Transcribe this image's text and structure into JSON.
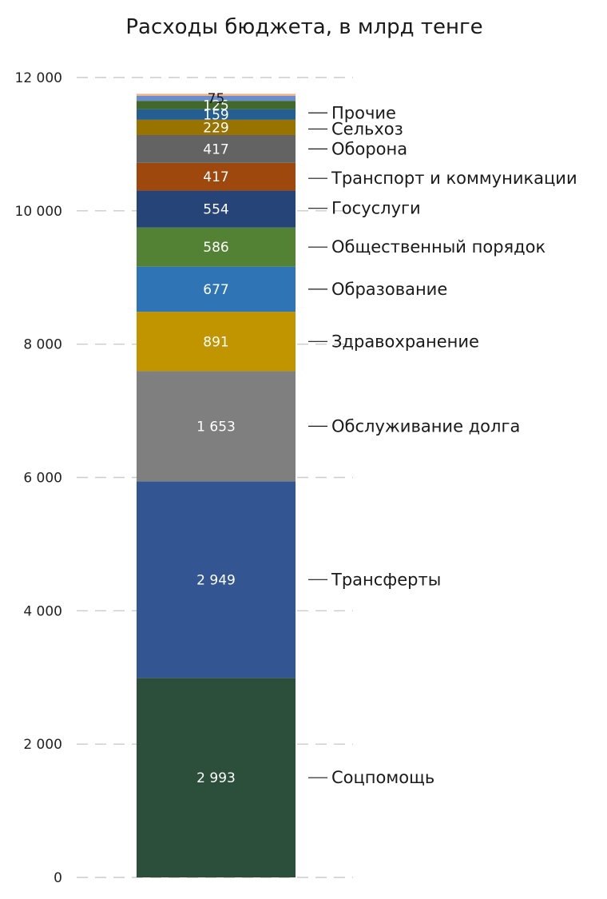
{
  "chart_data": {
    "type": "bar",
    "stacked": true,
    "title": "Расходы бюджета, в млрд тенге",
    "xlabel": "",
    "ylabel": "",
    "ylim": [
      0,
      12000
    ],
    "yticks": [
      0,
      2000,
      4000,
      6000,
      8000,
      10000,
      12000
    ],
    "ytick_labels": [
      "0",
      "2 000",
      "4 000",
      "6 000",
      "8 000",
      "10 000",
      "12 000"
    ],
    "grid": true,
    "segments": [
      {
        "category": "Соцпомощь",
        "value": 2993,
        "label": "2 993",
        "color": "#2b4f3b",
        "text_color": "#ffffff"
      },
      {
        "category": "Трансферты",
        "value": 2949,
        "label": "2 949",
        "color": "#335693",
        "text_color": "#ffffff"
      },
      {
        "category": "Обслуживание долга",
        "value": 1653,
        "label": "1 653",
        "color": "#7f7f7f",
        "text_color": "#ffffff"
      },
      {
        "category": "Здравохранение",
        "value": 891,
        "label": "891",
        "color": "#c09500",
        "text_color": "#ffffff"
      },
      {
        "category": "Образование",
        "value": 677,
        "label": "677",
        "color": "#2f75b5",
        "text_color": "#ffffff"
      },
      {
        "category": "Общественный порядок",
        "value": 586,
        "label": "586",
        "color": "#548235",
        "text_color": "#ffffff"
      },
      {
        "category": "Госуслуги",
        "value": 554,
        "label": "554",
        "color": "#264478",
        "text_color": "#ffffff"
      },
      {
        "category": "Транспорт и коммуникации",
        "value": 417,
        "label": "417",
        "color": "#9e480e",
        "text_color": "#ffffff"
      },
      {
        "category": "Оборона",
        "value": 417,
        "label": "417",
        "color": "#636363",
        "text_color": "#ffffff"
      },
      {
        "category": "Сельхоз",
        "value": 229,
        "label": "229",
        "color": "#997300",
        "text_color": "#ffffff"
      },
      {
        "category": "Прочие",
        "value": 159,
        "label": "159",
        "color": "#255e91",
        "text_color": "#ffffff"
      },
      {
        "category": "",
        "value": 125,
        "label": "125",
        "color": "#43682b",
        "text_color": "#ffffff"
      },
      {
        "category": "",
        "value": 75,
        "label": "75",
        "color": "#698ed0",
        "text_color": "#1a1a1a"
      },
      {
        "category": "",
        "value": 30,
        "label": "",
        "color": "#f4b183",
        "text_color": "#1a1a1a"
      }
    ]
  }
}
